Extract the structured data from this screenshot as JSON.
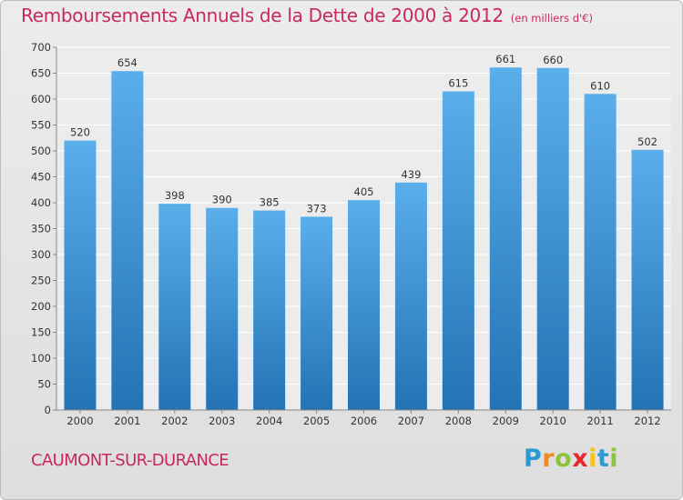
{
  "chart_data": {
    "type": "bar",
    "title": "Remboursements Annuels de la Dette de 2000 à 2012",
    "unit_note": "(en milliers d'€)",
    "categories": [
      "2000",
      "2001",
      "2002",
      "2003",
      "2004",
      "2005",
      "2006",
      "2007",
      "2008",
      "2009",
      "2010",
      "2011",
      "2012"
    ],
    "values": [
      520,
      654,
      398,
      390,
      385,
      373,
      405,
      439,
      615,
      661,
      660,
      610,
      502
    ],
    "ylim": [
      0,
      700
    ],
    "yticks": [
      0,
      50,
      100,
      150,
      200,
      250,
      300,
      350,
      400,
      450,
      500,
      550,
      600,
      650,
      700
    ],
    "grid": true,
    "bar_color_top": "#5aaeea",
    "bar_color_bottom": "#2473b5"
  },
  "commune": "CAUMONT-SUR-DURANCE",
  "logo": {
    "letters": [
      "P",
      "r",
      "o",
      "x",
      "i",
      "t",
      "i"
    ],
    "colors": [
      "#2a9ad0",
      "#f08a1c",
      "#8cc43c",
      "#e8262c",
      "#f6c319",
      "#2a9ad0",
      "#8cc43c"
    ]
  }
}
